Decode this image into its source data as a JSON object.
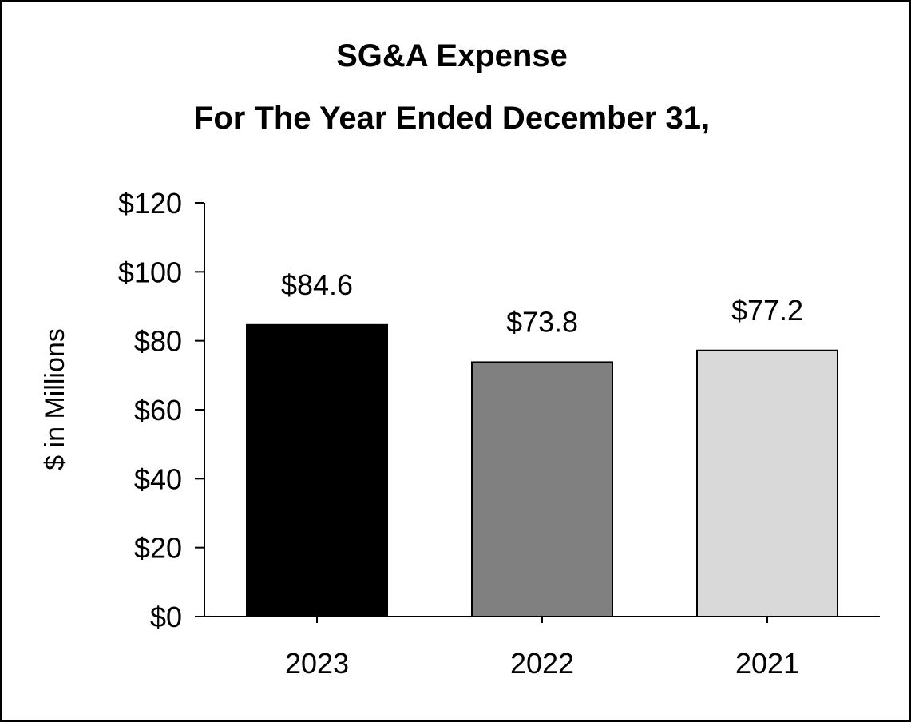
{
  "chart_data": {
    "type": "bar",
    "title": "SG&A Expense",
    "subtitle": "For The Year Ended December 31,",
    "xlabel": "",
    "ylabel": "$ in Millions",
    "categories": [
      "2023",
      "2022",
      "2021"
    ],
    "values": [
      84.6,
      73.8,
      77.2
    ],
    "data_labels": [
      "$84.6",
      "$73.8",
      "$77.2"
    ],
    "colors": [
      "#000000",
      "#808080",
      "#d9d9d9"
    ],
    "ylim": [
      0,
      120
    ],
    "yticks": [
      0,
      20,
      40,
      60,
      80,
      100,
      120
    ],
    "ytick_labels": [
      "$0",
      "$20",
      "$40",
      "$60",
      "$80",
      "$100",
      "$120"
    ],
    "grid": false,
    "legend": "none"
  }
}
